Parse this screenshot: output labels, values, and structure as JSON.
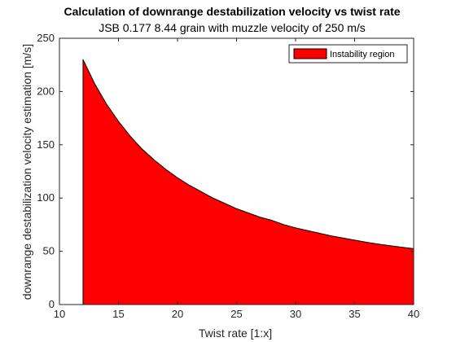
{
  "chart_data": {
    "type": "area",
    "title": "Calculation of downrange destabilization velocity vs twist rate",
    "subtitle": "JSB 0.177 8.44 grain with muzzle velocity of 250 m/s",
    "xlabel": "Twist rate [1:x]",
    "ylabel": "downrange destabilization velocity estimation [m/s]",
    "xlim": [
      10,
      40
    ],
    "ylim": [
      0,
      250
    ],
    "xticks": [
      "10",
      "15",
      "20",
      "25",
      "30",
      "35",
      "40"
    ],
    "yticks": [
      "0",
      "50",
      "100",
      "150",
      "200",
      "250"
    ],
    "grid": false,
    "legend_position": "top-right",
    "series": [
      {
        "name": "Instability region",
        "color": "#ff0000",
        "x": [
          12,
          13,
          14,
          15,
          16,
          17,
          18,
          19,
          20,
          21,
          22,
          23,
          24,
          25,
          26,
          27,
          28,
          29,
          30,
          31,
          32,
          33,
          34,
          35,
          36,
          37,
          38,
          39,
          40
        ],
        "y": [
          230,
          207,
          188,
          172,
          158,
          146,
          136,
          127,
          119,
          112,
          106,
          100,
          95,
          90,
          86,
          82,
          79,
          75,
          72,
          69.5,
          67,
          64.5,
          62.5,
          60.5,
          58.5,
          56.8,
          55.2,
          53.8,
          52.5
        ]
      }
    ]
  }
}
